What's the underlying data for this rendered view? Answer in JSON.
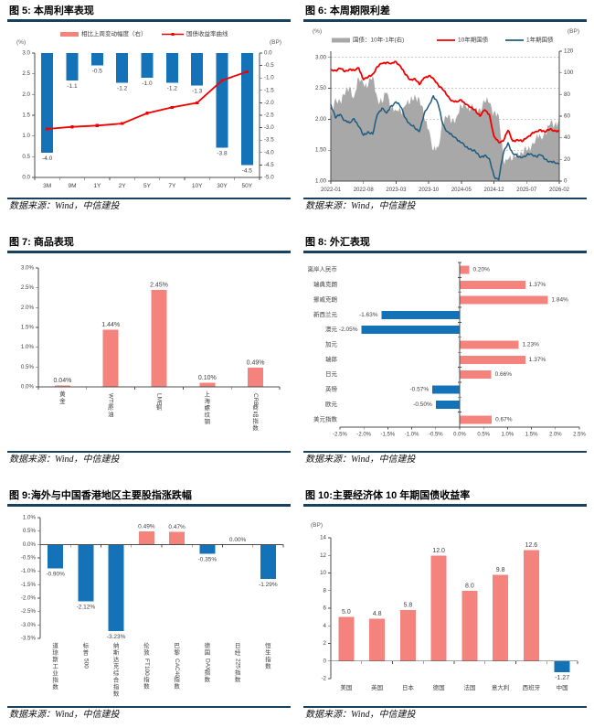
{
  "colors": {
    "pink": "#F4837D",
    "blue": "#1473B8",
    "red": "#F20000",
    "darkblue": "#1F5B7E",
    "gray": "#A8A8A8",
    "rule": "#17415E",
    "axis": "#4D4D4D",
    "text": "#404040",
    "unit": "#595959",
    "grid": "#9A9A9A"
  },
  "figures": [
    {
      "title": "图 5: 本周利率表现",
      "source": "数据来源：Wind，中信建投"
    },
    {
      "title": "图 6: 本周期限利差",
      "source": "数据来源：Wind，中信建投"
    },
    {
      "title": "图 7: 商品表现",
      "source": "数据来源：Wind，中信建投"
    },
    {
      "title": "图 8: 外汇表现",
      "source": "数据来源：Wind，中信建投"
    },
    {
      "title": "图 9:海外与中国香港地区主要股指涨跌幅",
      "source": "数据来源：Wind，中信建投"
    },
    {
      "title": "图 10:主要经济体 10 年期国债收益率",
      "source": "数据来源：Wind，中信建投"
    }
  ],
  "chart_data": [
    {
      "type": "bar_line_combo",
      "left_axis": {
        "unit": "(%)",
        "min": 0,
        "max": 3,
        "ticks": [
          [
            0,
            "0.0"
          ],
          [
            0.5,
            "0.5"
          ],
          [
            1,
            "1.0"
          ],
          [
            1.5,
            "1.5"
          ],
          [
            2,
            "2.0"
          ],
          [
            2.5,
            "2.5"
          ],
          [
            3,
            "3.0"
          ]
        ]
      },
      "right_axis": {
        "unit": "(BP)",
        "min": -5,
        "max": 0,
        "ticks": [
          [
            0,
            "0.0"
          ],
          [
            -0.5,
            "-0.5"
          ],
          [
            -1,
            "-1.0"
          ],
          [
            -1.5,
            "-1.5"
          ],
          [
            -2,
            "-2.0"
          ],
          [
            -2.5,
            "-2.5"
          ],
          [
            -3,
            "-3.0"
          ],
          [
            -3.5,
            "-3.5"
          ],
          [
            -4,
            "-4.0"
          ],
          [
            -4.5,
            "-4.5"
          ],
          [
            -5,
            "-5.0"
          ]
        ]
      },
      "categories": [
        "3M",
        "9M",
        "1Y",
        "2Y",
        "5Y",
        "7Y",
        "10Y",
        "30Y",
        "50Y"
      ],
      "legend": [
        {
          "label": "相比上周变动幅度（右）",
          "swatch": "bar",
          "color": "pink"
        },
        {
          "label": "国债收益率曲线",
          "swatch": "line",
          "color": "red"
        }
      ],
      "bars": {
        "name": "相比上周变动幅度（右）",
        "axis": "right",
        "color": "blue",
        "values": [
          -4.0,
          -1.1,
          -0.5,
          -1.2,
          -1.0,
          -1.2,
          -1.3,
          -3.8,
          -4.5
        ],
        "labels": [
          "-4.0",
          "-1.1",
          "-0.5",
          "-1.2",
          "-1.0",
          "-1.2",
          "-1.3",
          "-3.8",
          "-4.5"
        ]
      },
      "line": {
        "name": "国债收益率曲线",
        "axis": "left",
        "color": "red",
        "values": [
          1.17,
          1.22,
          1.25,
          1.3,
          1.55,
          1.69,
          1.8,
          2.34,
          2.55
        ]
      }
    },
    {
      "type": "time_series",
      "left_axis": {
        "unit": "(%)",
        "min": 1.0,
        "max": 3.1,
        "ticks": [
          [
            1,
            "1.00"
          ],
          [
            1.5,
            "1.50"
          ],
          [
            2,
            "2.00"
          ],
          [
            2.5,
            "2.50"
          ],
          [
            3,
            "3.00"
          ]
        ]
      },
      "right_axis": {
        "unit": "(BP)",
        "min": 0,
        "max": 120,
        "ticks": [
          [
            0,
            "0"
          ],
          [
            20,
            "20"
          ],
          [
            40,
            "40"
          ],
          [
            60,
            "60"
          ],
          [
            80,
            "80"
          ],
          [
            100,
            "100"
          ],
          [
            120,
            "120"
          ]
        ]
      },
      "gridlines_left": [
        1.5,
        2,
        2.5,
        3
      ],
      "x_tick_labels": [
        "2022-01",
        "2022-08",
        "2023-03",
        "2023-10",
        "2024-05",
        "2024-12",
        "2025-07",
        "2026-02"
      ],
      "x_tick_indices": [
        0,
        7,
        14,
        21,
        28,
        35,
        42,
        49
      ],
      "series": [
        {
          "name": "国债：10年-1年(右)",
          "type": "area",
          "axis": "right",
          "color": "gray",
          "values": [
            56,
            77,
            74,
            79,
            87,
            78,
            95,
            90,
            88,
            97,
            77,
            72,
            82,
            68,
            65,
            65,
            70,
            72,
            80,
            76,
            59,
            48,
            28,
            31,
            56,
            58,
            56,
            60,
            69,
            69,
            67,
            67,
            67,
            73,
            72,
            64,
            61,
            20,
            20,
            20,
            27,
            26,
            28,
            32,
            40,
            41,
            44,
            52,
            52,
            58
          ]
        },
        {
          "name": "10年期国债",
          "type": "line",
          "axis": "left",
          "color": "red",
          "values": [
            2.8,
            2.79,
            2.82,
            2.77,
            2.81,
            2.79,
            2.83,
            2.64,
            2.68,
            2.73,
            2.85,
            2.9,
            2.92,
            2.9,
            2.93,
            2.85,
            2.72,
            2.64,
            2.66,
            2.56,
            2.67,
            2.7,
            2.66,
            2.56,
            2.48,
            2.38,
            2.3,
            2.28,
            2.31,
            2.24,
            2.19,
            2.15,
            2.05,
            2.15,
            2.08,
            1.72,
            1.63,
            1.65,
            1.82,
            1.65,
            1.67,
            1.64,
            1.7,
            1.76,
            1.8,
            1.83,
            1.79,
            1.84,
            1.82,
            1.8
          ]
        },
        {
          "name": "1年期国债",
          "type": "line",
          "axis": "left",
          "color": "darkblue",
          "values": [
            2.24,
            2.02,
            2.08,
            1.98,
            1.94,
            2.01,
            1.88,
            1.74,
            1.8,
            1.76,
            2.08,
            2.18,
            2.1,
            2.22,
            2.28,
            2.2,
            2.02,
            1.92,
            1.86,
            1.8,
            2.08,
            2.22,
            2.38,
            2.25,
            1.92,
            1.8,
            1.74,
            1.68,
            1.62,
            1.55,
            1.52,
            1.48,
            1.38,
            1.42,
            1.36,
            1.08,
            1.02,
            1.45,
            1.62,
            1.45,
            1.4,
            1.38,
            1.42,
            1.44,
            1.4,
            1.42,
            1.35,
            1.32,
            1.3,
            1.27
          ]
        }
      ]
    },
    {
      "type": "bar",
      "y_axis": {
        "min": 0,
        "max": 3,
        "ticks": [
          [
            0,
            "0.0%"
          ],
          [
            0.5,
            "0.5%"
          ],
          [
            1,
            "1.0%"
          ],
          [
            1.5,
            "1.5%"
          ],
          [
            2,
            "2.0%"
          ],
          [
            2.5,
            "2.5%"
          ],
          [
            3,
            "3.0%"
          ]
        ]
      },
      "categories": [
        "黄金",
        "WTI原油",
        "LME铜",
        "上海螺纹钢",
        "CRB商品指数"
      ],
      "values": [
        0.04,
        1.44,
        2.45,
        0.1,
        0.49
      ],
      "value_labels": [
        "0.04%",
        "1.44%",
        "2.45%",
        "0.10%",
        "0.49%"
      ],
      "bar_color": "pink",
      "color_by_sign": false,
      "cat_label_orientation": "vertical",
      "value_label_size": 7
    },
    {
      "type": "hbar",
      "x_axis": {
        "min": -2.5,
        "max": 2.5,
        "ticks": [
          [
            -2.5,
            "-2.5%"
          ],
          [
            -2,
            "-2.0%"
          ],
          [
            -1.5,
            "-1.5%"
          ],
          [
            -1,
            "-1.0%"
          ],
          [
            -0.5,
            "-0.5%"
          ],
          [
            0,
            "0.0%"
          ],
          [
            0.5,
            "0.5%"
          ],
          [
            1,
            "1.0%"
          ],
          [
            1.5,
            "1.5%"
          ],
          [
            2,
            "2.0%"
          ],
          [
            2.5,
            "2.5%"
          ]
        ]
      },
      "categories": [
        "离岸人民币",
        "瑞典克朗",
        "挪威克朗",
        "新西兰元",
        "澳元",
        "加元",
        "瑞郎",
        "日元",
        "英镑",
        "欧元",
        "美元指数"
      ],
      "values": [
        0.2,
        1.37,
        1.84,
        -1.63,
        -2.05,
        1.23,
        1.37,
        0.66,
        -0.57,
        -0.5,
        0.67
      ],
      "value_labels": [
        "0.20%",
        "1.37%",
        "1.84%",
        "-1.63%",
        "-2.05%",
        "1.23%",
        "1.37%",
        "0.66%",
        "-0.57%",
        "-0.50%",
        "0.67%"
      ]
    },
    {
      "type": "bar",
      "y_axis": {
        "min": -3.5,
        "max": 1,
        "ticks": [
          [
            1,
            "1.0%"
          ],
          [
            0.5,
            "0.5%"
          ],
          [
            0,
            "0.0%"
          ],
          [
            -0.5,
            "-0.5%"
          ],
          [
            -1,
            "-1.0%"
          ],
          [
            -1.5,
            "-1.5%"
          ],
          [
            -2,
            "-2.0%"
          ],
          [
            -2.5,
            "-2.5%"
          ],
          [
            -3,
            "-3.0%"
          ],
          [
            -3.5,
            "-3.5%"
          ]
        ]
      },
      "categories": [
        "道琼斯工业指数",
        "标普500",
        "纳斯达克综合指数",
        "伦敦FT100指数",
        "巴黎CAC40指数",
        "德国DAX指数",
        "日经225指数",
        "恒生指数"
      ],
      "values": [
        -0.9,
        -2.12,
        -3.23,
        0.49,
        0.47,
        -0.35,
        0.0,
        -1.29
      ],
      "value_labels": [
        "-0.90%",
        "-2.12%",
        "-3.23%",
        "0.49%",
        "0.47%",
        "-0.35%",
        "0.00%",
        "-1.29%"
      ],
      "bar_color": "pink",
      "color_by_sign": true,
      "cat_label_orientation": "vertical",
      "value_label_size": 6.5
    },
    {
      "type": "bar",
      "unit": "(BP)",
      "y_axis": {
        "min": -2,
        "max": 14,
        "ticks": [
          [
            14,
            "14"
          ],
          [
            12,
            "12"
          ],
          [
            10,
            "10"
          ],
          [
            8,
            "8"
          ],
          [
            6,
            "6"
          ],
          [
            4,
            "4"
          ],
          [
            2,
            "2"
          ],
          [
            0,
            "0"
          ],
          [
            -2,
            "-2"
          ]
        ]
      },
      "categories": [
        "美国",
        "英国",
        "日本",
        "德国",
        "法国",
        "意大利",
        "西班牙",
        "中国"
      ],
      "values": [
        5.0,
        4.8,
        5.8,
        12.0,
        8.0,
        9.8,
        12.6,
        -1.27
      ],
      "value_labels": [
        "5.0",
        "4.8",
        "5.8",
        "12.0",
        "8.0",
        "9.8",
        "12.6",
        "-1.27"
      ],
      "bar_color": "pink",
      "color_by_sign": true,
      "cat_label_orientation": "horizontal",
      "value_label_size": 7
    }
  ]
}
